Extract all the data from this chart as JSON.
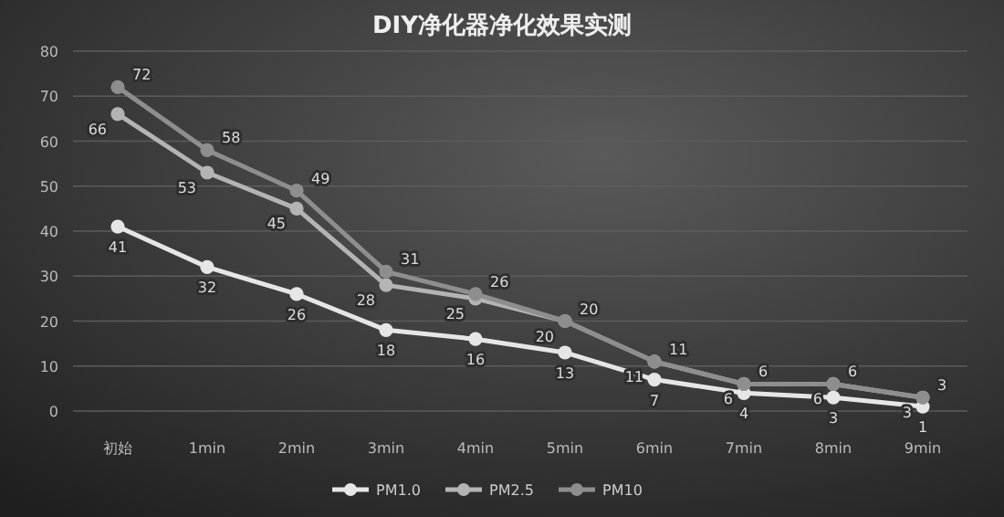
{
  "chart_data": {
    "type": "line",
    "title": "DIY净化器净化效果实测",
    "categories": [
      "初始",
      "1min",
      "2min",
      "3min",
      "4min",
      "5min",
      "6min",
      "7min",
      "8min",
      "9min"
    ],
    "series": [
      {
        "name": "PM1.0",
        "color": "#e6e6e6",
        "values": [
          41,
          32,
          26,
          18,
          16,
          13,
          7,
          4,
          3,
          1
        ]
      },
      {
        "name": "PM2.5",
        "color": "#b4b4b4",
        "values": [
          66,
          53,
          45,
          28,
          25,
          20,
          11,
          6,
          6,
          3
        ]
      },
      {
        "name": "PM10",
        "color": "#8e8e8e",
        "values": [
          72,
          58,
          49,
          31,
          26,
          20,
          11,
          6,
          6,
          3
        ]
      }
    ],
    "ylim": [
      0,
      80
    ],
    "yticks": [
      0,
      10,
      20,
      30,
      40,
      50,
      60,
      70,
      80
    ],
    "grid": "y",
    "legend": "bottom",
    "marker": "circle",
    "line_style": "solid",
    "data_labels": true
  }
}
